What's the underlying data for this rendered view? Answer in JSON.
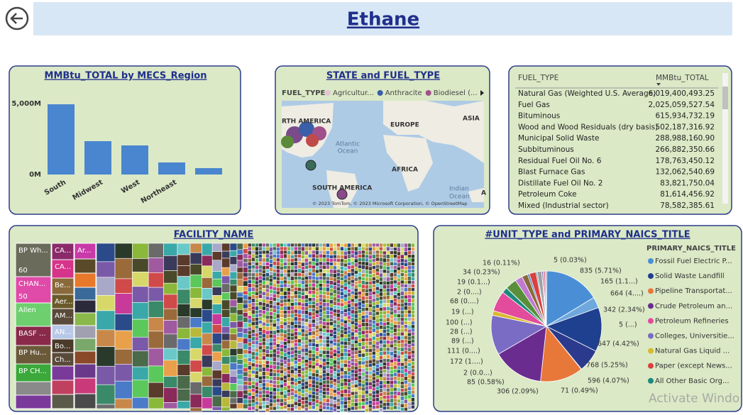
{
  "header": {
    "title": "Ethane"
  },
  "chart_data": [
    {
      "type": "bar",
      "title": "MMBtu_TOTAL by MECS_Region",
      "categories": [
        "South",
        "Midwest",
        "West",
        "Northeast",
        null
      ],
      "values": [
        4950000000,
        2350000000,
        2050000000,
        850000000,
        450000000
      ],
      "color": "#4a86cf",
      "ylim": [
        0,
        5750000000
      ],
      "yticks": [
        {
          "value": 0,
          "label": "0M"
        },
        {
          "value": 5000000000,
          "label": "5,000M"
        }
      ]
    },
    {
      "type": "map",
      "title": "STATE and FUEL_TYPE",
      "legend_title": "FUEL_TYPE",
      "series": [
        {
          "name": "Agricultur...",
          "color": "#e6c3d6"
        },
        {
          "name": "Anthracite",
          "color": "#3a5fa8"
        },
        {
          "name": "Biodiesel (...",
          "color": "#a0508a"
        }
      ],
      "map_labels": [
        "RTH AMERICA",
        "EUROPE",
        "ASIA",
        "Atlantic",
        "Ocean",
        "AFRICA",
        "SOUTH AMERICA",
        "Indian",
        "Ocean",
        "A"
      ],
      "attribution": "© 2023 TomTom, © 2023 Microsoft Corporation, © OpenStreetMap"
    },
    {
      "type": "pie",
      "title": "#UNIT_TYPE and PRIMARY_NAICS_TITLE",
      "legend_title": "PRIMARY_NAICS_TITLE",
      "values": [
        5,
        835,
        165,
        664,
        342,
        5,
        647,
        768,
        596,
        71,
        306,
        85,
        2,
        172,
        111,
        89,
        28,
        100,
        19,
        68,
        2,
        19,
        34,
        16
      ],
      "value_labels": [
        "5 (0.03%)",
        "835 (5.71%)",
        "165 (1.1...)",
        "664 (4....)",
        "342 (2.34%)",
        "5 (...)",
        "647 (4.42%)",
        "768 (5.25%)",
        "596 (4.07%)",
        "71 (0.49%)",
        "306 (2.09%)",
        "85 (0.58%)",
        "2 (0.0...)",
        "172 (1....)",
        "111 (0....)",
        "89 (...)",
        "28 (...)",
        "100 (...)",
        "19 (...)",
        "68 (0....)",
        "2 (0....)",
        "19 (0.1...)",
        "34 (0.23%)",
        "16 (0.11%)"
      ],
      "colors": [
        "#a8b8d8",
        "#4a8fd6",
        "#6fa8dc",
        "#1f3f8f",
        "#2b3a8c",
        "#9fb0e0",
        "#e8773a",
        "#6b2c8f",
        "#7a6cc4",
        "#d9b92e",
        "#e34b9c",
        "#1c8a7c",
        "#b04a6a",
        "#5a8f3a",
        "#c07ad0",
        "#8a6a3a",
        "#4a7ac8",
        "#d94040",
        "#3a9a9a",
        "#a0a0a0",
        "#c8b040",
        "#6a4aa0",
        "#e08aa8",
        "#4a6a8a"
      ],
      "series": [
        {
          "name": "Fossil Fuel Electric P...",
          "color": "#4a8fd6"
        },
        {
          "name": "Solid Waste Landfill",
          "color": "#1f3f8f"
        },
        {
          "name": "Pipeline Transportat...",
          "color": "#e8773a"
        },
        {
          "name": "Crude Petroleum an...",
          "color": "#6b2c8f"
        },
        {
          "name": "Petroleum Refineries",
          "color": "#e34b9c"
        },
        {
          "name": "Colleges, Universitie...",
          "color": "#7a6cc4"
        },
        {
          "name": "Natural Gas Liquid ...",
          "color": "#d9b92e"
        },
        {
          "name": "Paper (except News...",
          "color": "#d94040"
        },
        {
          "name": "All Other Basic Org...",
          "color": "#1c8a7c"
        }
      ]
    },
    {
      "type": "treemap",
      "title": "FACILITY_NAME",
      "nodes": [
        {
          "label": "BP Wh...",
          "value": 60
        },
        {
          "label": "CHAN...",
          "value": 50
        },
        {
          "label": "Allen"
        },
        {
          "label": "BASF ..."
        },
        {
          "label": "BP Hu..."
        },
        {
          "label": "BP CH..."
        },
        {
          "label": "CA..."
        },
        {
          "label": "CA..."
        },
        {
          "label": "Be..."
        },
        {
          "label": "Aer..."
        },
        {
          "label": "AM..."
        },
        {
          "label": "AN..."
        },
        {
          "label": "Bo..."
        },
        {
          "label": "Ch..."
        },
        {
          "label": "Ar..."
        }
      ]
    }
  ],
  "table": {
    "columns": [
      "FUEL_TYPE",
      "MMBtu_TOTAL"
    ],
    "rows": [
      [
        "Natural Gas (Weighted U.S. Average)",
        "6,019,400,493.25"
      ],
      [
        "Fuel Gas",
        "2,025,059,527.54"
      ],
      [
        "Bituminous",
        "615,934,732.19"
      ],
      [
        "Wood and Wood Residuals (dry basis)",
        "502,187,316.92"
      ],
      [
        "Municipal Solid Waste",
        "288,988,160.90"
      ],
      [
        "Subbituminous",
        "266,882,350.66"
      ],
      [
        "Residual Fuel Oil No. 6",
        "178,763,450.12"
      ],
      [
        "Blast Furnace Gas",
        "132,062,540.69"
      ],
      [
        "Distillate Fuel Oil No. 2",
        "83,821,750.04"
      ],
      [
        "Petroleum Coke",
        "81,614,456.92"
      ],
      [
        "Mixed (Industrial sector)",
        "78,582,385.61"
      ]
    ]
  },
  "watermark": "Activate Windo"
}
